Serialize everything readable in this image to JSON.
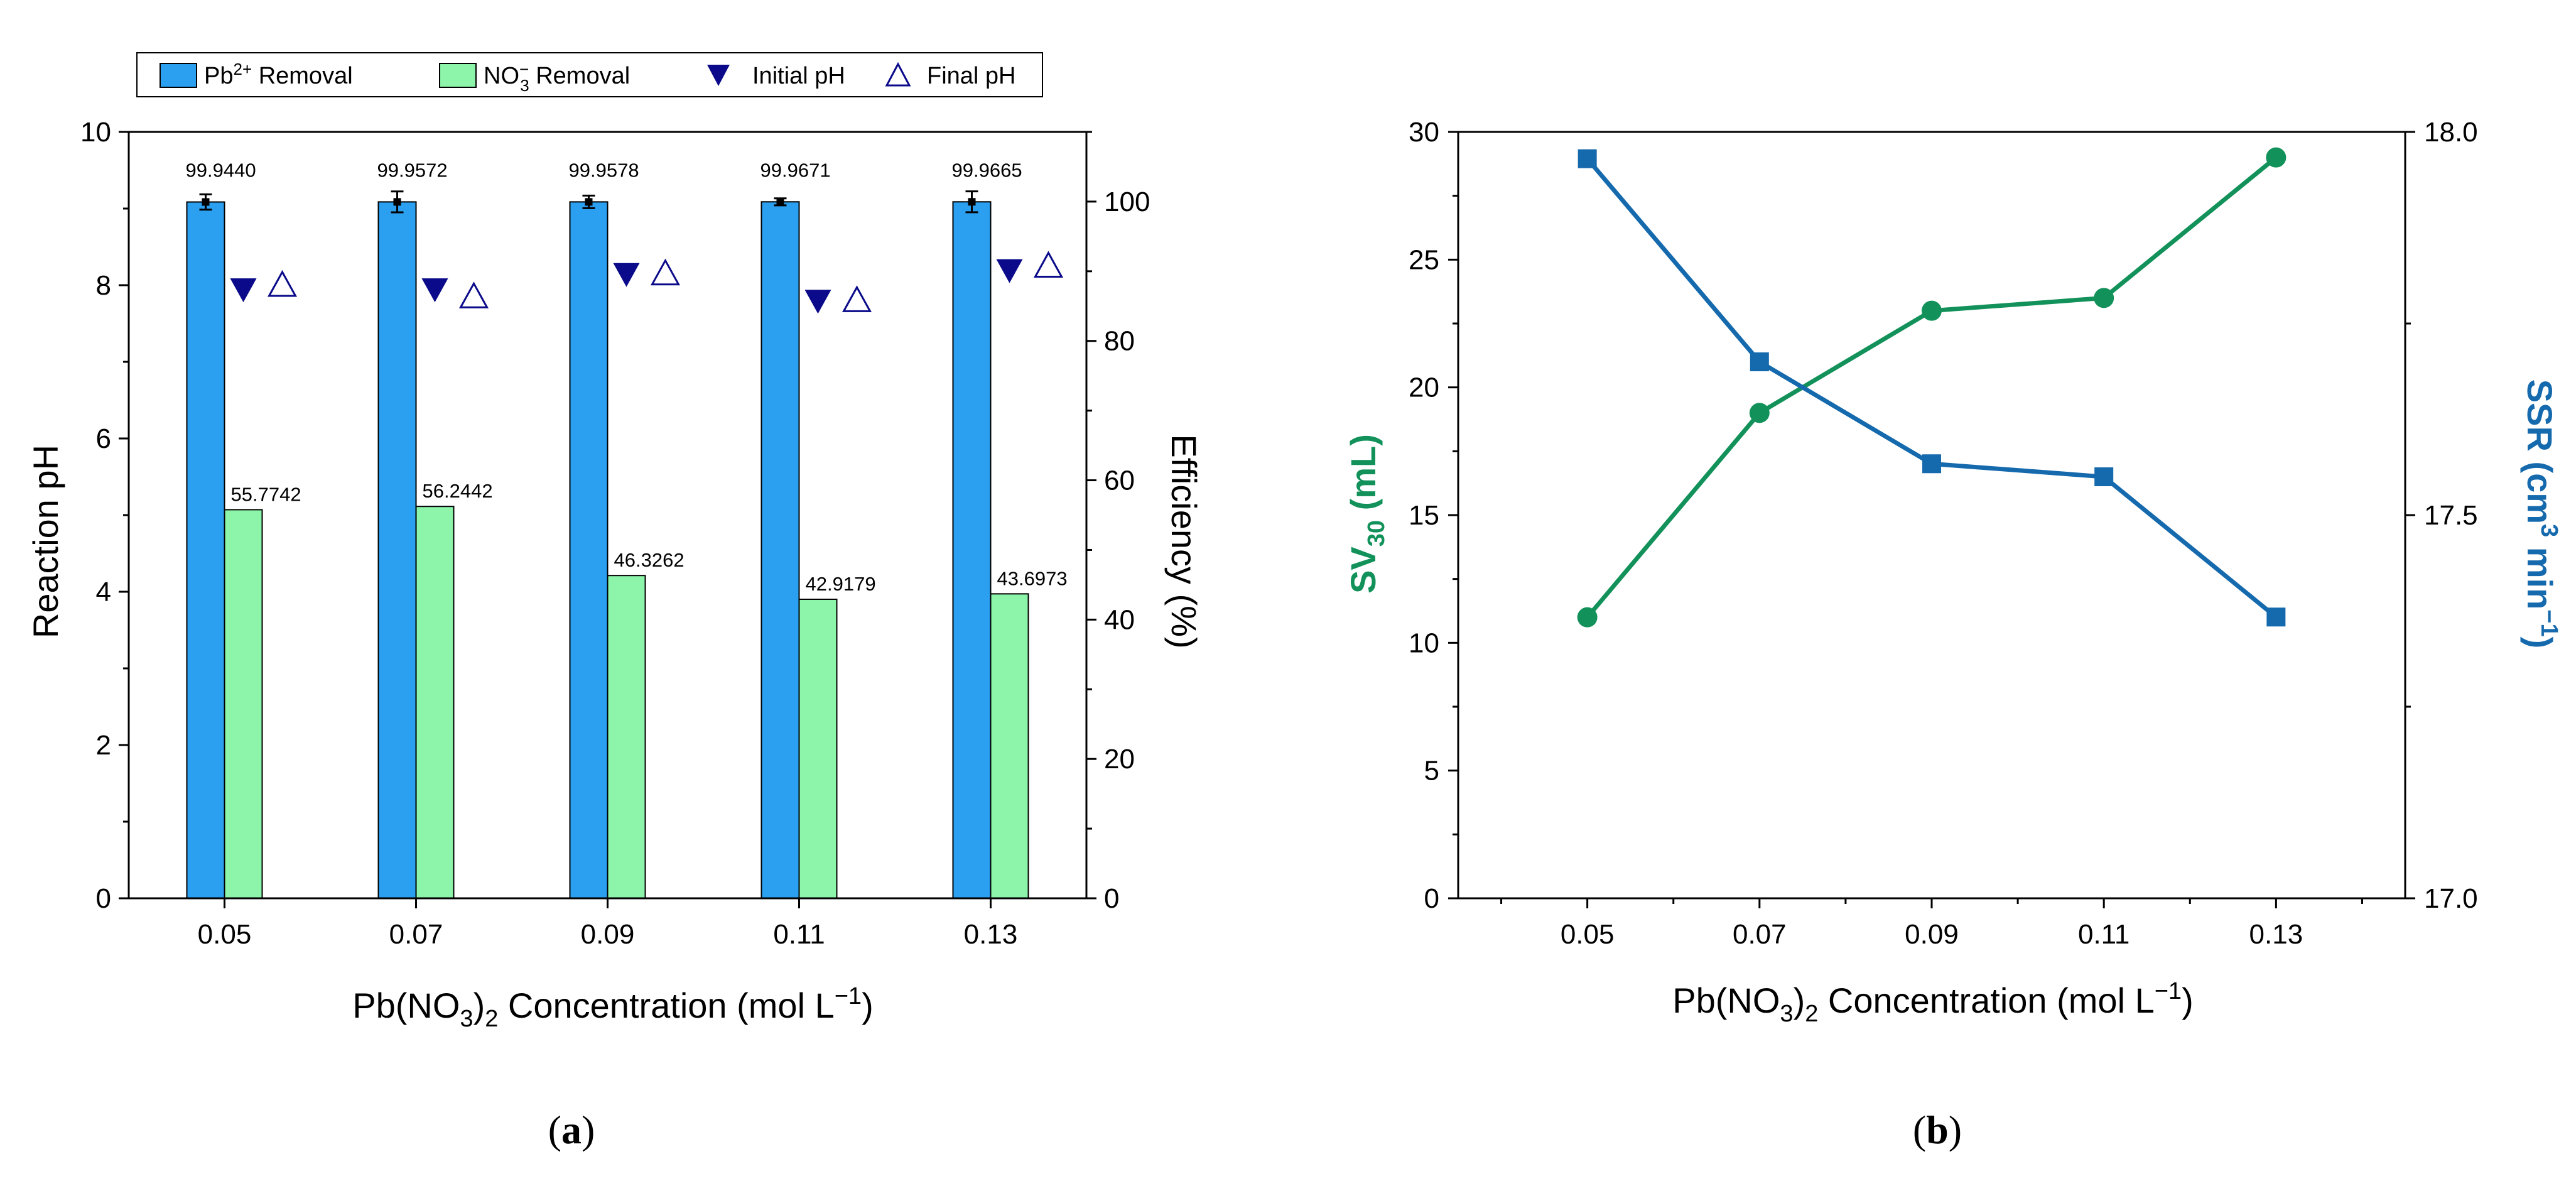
{
  "panels": {
    "a": {
      "open": "(",
      "letter": "a",
      "close": ")"
    },
    "b": {
      "open": "(",
      "letter": "b",
      "close": ")"
    }
  },
  "chart_data": [
    {
      "id": "a",
      "type": "bar",
      "categories": [
        "0.05",
        "0.07",
        "0.09",
        "0.11",
        "0.13"
      ],
      "xlabel": {
        "pre": "Pb(NO",
        "s1": "3",
        "mid": ")",
        "s2": "2",
        "post": " Concentration (mol L",
        "sup": "−1",
        "end": ")"
      },
      "ylabel_left": "Reaction pH",
      "ylabel_right": "Efficiency (%)",
      "ylim_left": [
        0,
        10
      ],
      "yticks_left": [
        "0",
        "2",
        "4",
        "6",
        "8",
        "10"
      ],
      "ylim_right": [
        0,
        110
      ],
      "yticks_right": [
        "0",
        "20",
        "40",
        "60",
        "80",
        "100"
      ],
      "series": [
        {
          "name": "Pb2+ Removal",
          "axis": "right",
          "color": "#2B9FF0",
          "values": [
            99.944,
            99.9572,
            99.9578,
            99.9671,
            99.9665
          ],
          "errors": [
            1.1,
            1.5,
            0.9,
            0.5,
            1.5
          ],
          "labels": [
            "99.9440",
            "99.9572",
            "99.9578",
            "99.9671",
            "99.9665"
          ]
        },
        {
          "name": "NO3- Removal",
          "axis": "right",
          "color": "#8CF5AA",
          "values": [
            55.7742,
            56.2442,
            46.3262,
            42.9179,
            43.6973
          ],
          "labels": [
            "55.7742",
            "56.2442",
            "46.3262",
            "42.9179",
            "43.6973"
          ]
        },
        {
          "name": "Initial pH",
          "axis": "left",
          "color": "#0A0A8A",
          "marker": "filled-down-triangle",
          "values": [
            7.95,
            7.95,
            8.15,
            7.8,
            8.2
          ]
        },
        {
          "name": "Final pH",
          "axis": "left",
          "color": "#0A0A8A",
          "marker": "open-up-triangle",
          "values": [
            8.0,
            7.85,
            8.15,
            7.8,
            8.25
          ]
        }
      ],
      "legend": {
        "items": [
          {
            "main": "Pb",
            "sup": "2+",
            "rest": " Removal"
          },
          {
            "main": "NO",
            "sup": "−",
            "sub": "3",
            "rest": " Removal"
          },
          {
            "main": "Initial pH"
          },
          {
            "main": "Final pH"
          }
        ],
        "placement": "top"
      }
    },
    {
      "id": "b",
      "type": "line",
      "x": [
        0.05,
        0.07,
        0.09,
        0.11,
        0.13
      ],
      "xticks": [
        "0.05",
        "0.07",
        "0.09",
        "0.11",
        "0.13"
      ],
      "xlim": [
        0.035,
        0.145
      ],
      "xlabel": {
        "pre": "Pb(NO",
        "s1": "3",
        "mid": ")",
        "s2": "2",
        "post": " Concentration (mol L",
        "sup": "−1",
        "end": ")"
      },
      "ylabel_left": {
        "main": "SV",
        "sub": "30",
        "rest": " (mL)"
      },
      "ylabel_right": {
        "main": "SSR (cm",
        "sup1": "3",
        "mid": " min",
        "sup2": "−1",
        "end": ")"
      },
      "ylim_left": [
        0,
        30
      ],
      "yticks_left": [
        "0",
        "5",
        "10",
        "15",
        "20",
        "25",
        "30"
      ],
      "ylim_right": [
        17.0,
        18.0
      ],
      "yticks_right": [
        "17.0",
        "17.5",
        "18.0"
      ],
      "series": [
        {
          "name": "SV30",
          "axis": "left",
          "color": "#12925A",
          "marker": "circle",
          "values": [
            11,
            19,
            23,
            23.5,
            29
          ]
        },
        {
          "name": "SSR",
          "axis": "right",
          "color": "#1569AD",
          "marker": "square",
          "values": [
            17.965,
            17.7,
            17.567,
            17.55,
            17.367
          ]
        }
      ]
    }
  ]
}
